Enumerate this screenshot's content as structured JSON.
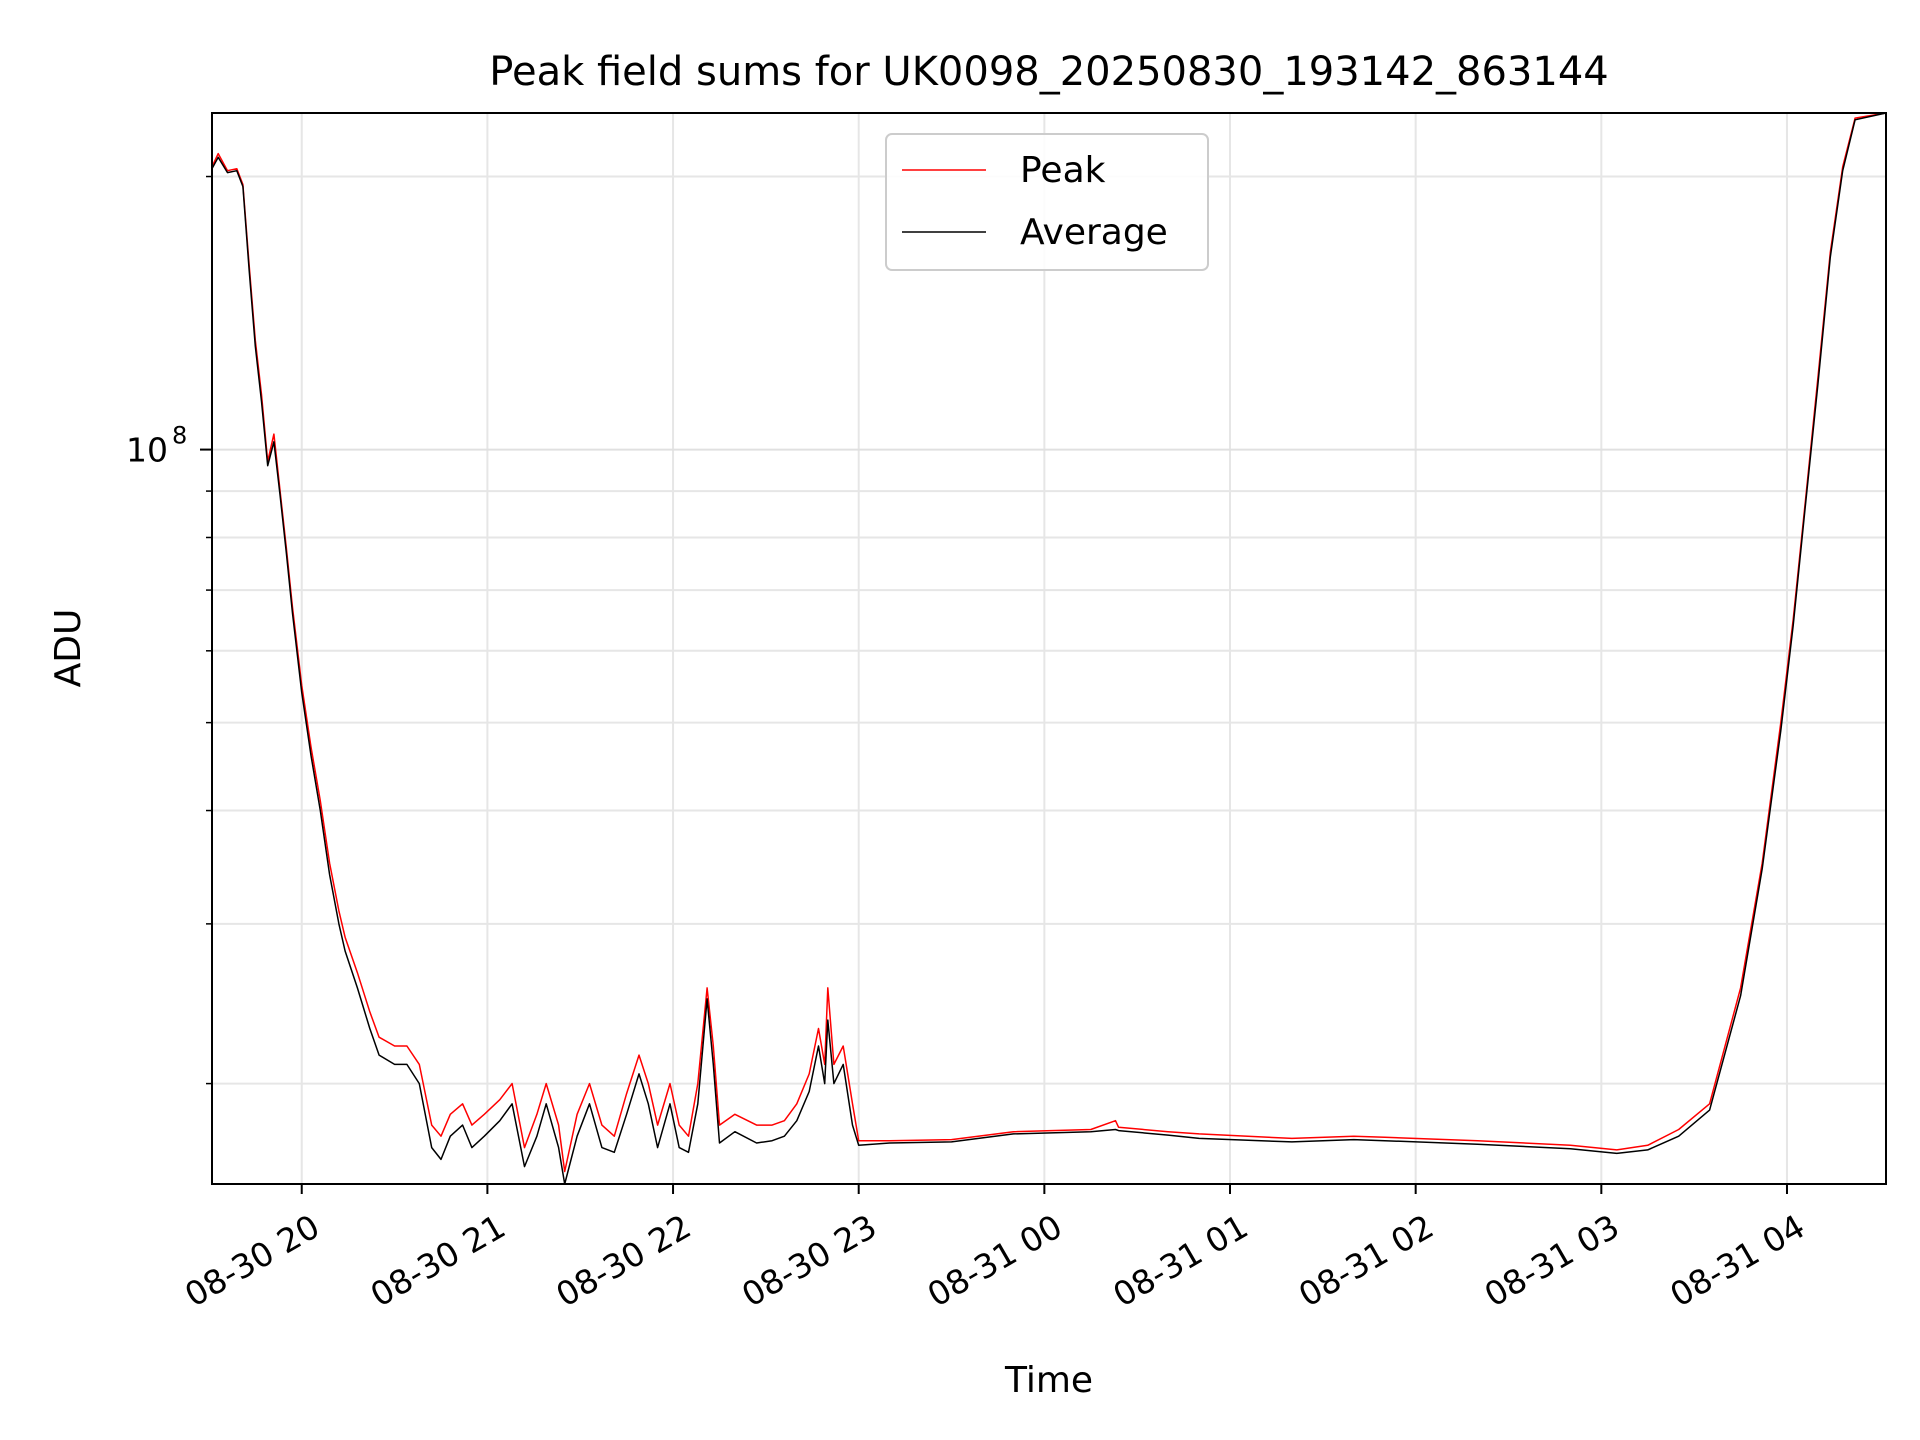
{
  "chart_data": {
    "type": "line",
    "title": "Peak field sums for UK0098_20250830_193142_863144",
    "xlabel": "Time",
    "ylabel": "ADU",
    "yscale": "log",
    "grid": true,
    "legend_placement": "top-center",
    "xlim": [
      "2025-08-30 19:31",
      "2025-08-31 04:32"
    ],
    "ylim": [
      15500000,
      235000000
    ],
    "x_ticks": [
      {
        "t": "2025-08-30 20:00",
        "label": "08-30 20"
      },
      {
        "t": "2025-08-30 21:00",
        "label": "08-30 21"
      },
      {
        "t": "2025-08-30 22:00",
        "label": "08-30 22"
      },
      {
        "t": "2025-08-30 23:00",
        "label": "08-30 23"
      },
      {
        "t": "2025-08-31 00:00",
        "label": "08-31 00"
      },
      {
        "t": "2025-08-31 01:00",
        "label": "08-31 01"
      },
      {
        "t": "2025-08-31 02:00",
        "label": "08-31 02"
      },
      {
        "t": "2025-08-31 03:00",
        "label": "08-31 03"
      },
      {
        "t": "2025-08-31 04:00",
        "label": "08-31 04"
      }
    ],
    "y_major_ticks": [
      {
        "value": 100000000,
        "label": "10",
        "exponent": "8"
      }
    ],
    "y_minor_ticks": [
      20000000,
      30000000,
      40000000,
      50000000,
      60000000,
      70000000,
      80000000,
      90000000,
      200000000
    ],
    "series": [
      {
        "name": "Peak",
        "color": "#ff0000",
        "points": [
          [
            "2025-08-30 19:31",
            205000000
          ],
          [
            "2025-08-30 19:33",
            212000000
          ],
          [
            "2025-08-30 19:36",
            203000000
          ],
          [
            "2025-08-30 19:39",
            204000000
          ],
          [
            "2025-08-30 19:41",
            196000000
          ],
          [
            "2025-08-30 19:43",
            160000000
          ],
          [
            "2025-08-30 19:45",
            132000000
          ],
          [
            "2025-08-30 19:47",
            115000000
          ],
          [
            "2025-08-30 19:49",
            97000000
          ],
          [
            "2025-08-30 19:51",
            104000000
          ],
          [
            "2025-08-30 19:53",
            90000000
          ],
          [
            "2025-08-30 19:55",
            78000000
          ],
          [
            "2025-08-30 19:57",
            67000000
          ],
          [
            "2025-08-30 20:00",
            55000000
          ],
          [
            "2025-08-30 20:03",
            47000000
          ],
          [
            "2025-08-30 20:06",
            41000000
          ],
          [
            "2025-08-30 20:09",
            35000000
          ],
          [
            "2025-08-30 20:12",
            31000000
          ],
          [
            "2025-08-30 20:14",
            29000000
          ],
          [
            "2025-08-30 20:18",
            26500000
          ],
          [
            "2025-08-30 20:22",
            24000000
          ],
          [
            "2025-08-30 20:25",
            22500000
          ],
          [
            "2025-08-30 20:30",
            22000000
          ],
          [
            "2025-08-30 20:34",
            22000000
          ],
          [
            "2025-08-30 20:38",
            21000000
          ],
          [
            "2025-08-30 20:42",
            18000000
          ],
          [
            "2025-08-30 20:45",
            17500000
          ],
          [
            "2025-08-30 20:48",
            18500000
          ],
          [
            "2025-08-30 20:52",
            19000000
          ],
          [
            "2025-08-30 20:55",
            18000000
          ],
          [
            "2025-08-30 20:59",
            18500000
          ],
          [
            "2025-08-30 21:04",
            19200000
          ],
          [
            "2025-08-30 21:08",
            20000000
          ],
          [
            "2025-08-30 21:12",
            17000000
          ],
          [
            "2025-08-30 21:16",
            18500000
          ],
          [
            "2025-08-30 21:19",
            20000000
          ],
          [
            "2025-08-30 21:23",
            18000000
          ],
          [
            "2025-08-30 21:25",
            16000000
          ],
          [
            "2025-08-30 21:29",
            18500000
          ],
          [
            "2025-08-30 21:33",
            20000000
          ],
          [
            "2025-08-30 21:37",
            18000000
          ],
          [
            "2025-08-30 21:41",
            17500000
          ],
          [
            "2025-08-30 21:45",
            19500000
          ],
          [
            "2025-08-30 21:49",
            21500000
          ],
          [
            "2025-08-30 21:52",
            20000000
          ],
          [
            "2025-08-30 21:55",
            18000000
          ],
          [
            "2025-08-30 21:59",
            20000000
          ],
          [
            "2025-08-30 22:02",
            18000000
          ],
          [
            "2025-08-30 22:05",
            17500000
          ],
          [
            "2025-08-30 22:08",
            20000000
          ],
          [
            "2025-08-30 22:11",
            25500000
          ],
          [
            "2025-08-30 22:13",
            22000000
          ],
          [
            "2025-08-30 22:15",
            18000000
          ],
          [
            "2025-08-30 22:20",
            18500000
          ],
          [
            "2025-08-30 22:27",
            18000000
          ],
          [
            "2025-08-30 22:32",
            18000000
          ],
          [
            "2025-08-30 22:36",
            18200000
          ],
          [
            "2025-08-30 22:40",
            19000000
          ],
          [
            "2025-08-30 22:44",
            20500000
          ],
          [
            "2025-08-30 22:47",
            23000000
          ],
          [
            "2025-08-30 22:49",
            21000000
          ],
          [
            "2025-08-30 22:50",
            25500000
          ],
          [
            "2025-08-30 22:52",
            21000000
          ],
          [
            "2025-08-30 22:55",
            22000000
          ],
          [
            "2025-08-30 22:58",
            19000000
          ],
          [
            "2025-08-30 23:00",
            17300000
          ],
          [
            "2025-08-30 23:10",
            17300000
          ],
          [
            "2025-08-30 23:30",
            17350000
          ],
          [
            "2025-08-30 23:50",
            17700000
          ],
          [
            "2025-08-31 00:15",
            17800000
          ],
          [
            "2025-08-31 00:23",
            18200000
          ],
          [
            "2025-08-31 00:24",
            17900000
          ],
          [
            "2025-08-31 00:40",
            17700000
          ],
          [
            "2025-08-31 00:50",
            17600000
          ],
          [
            "2025-08-31 01:20",
            17400000
          ],
          [
            "2025-08-31 01:40",
            17500000
          ],
          [
            "2025-08-31 01:50",
            17450000
          ],
          [
            "2025-08-31 02:20",
            17300000
          ],
          [
            "2025-08-31 02:50",
            17100000
          ],
          [
            "2025-08-31 03:05",
            16900000
          ],
          [
            "2025-08-31 03:15",
            17100000
          ],
          [
            "2025-08-31 03:25",
            17800000
          ],
          [
            "2025-08-31 03:35",
            19000000
          ],
          [
            "2025-08-31 03:45",
            25500000
          ],
          [
            "2025-08-31 03:52",
            35000000
          ],
          [
            "2025-08-31 03:58",
            50000000
          ],
          [
            "2025-08-31 04:02",
            65000000
          ],
          [
            "2025-08-31 04:06",
            88000000
          ],
          [
            "2025-08-31 04:10",
            120000000
          ],
          [
            "2025-08-31 04:14",
            165000000
          ],
          [
            "2025-08-31 04:18",
            205000000
          ],
          [
            "2025-08-31 04:22",
            232000000
          ],
          [
            "2025-08-31 04:32",
            235000000
          ]
        ]
      },
      {
        "name": "Average",
        "color": "#000000",
        "points": [
          [
            "2025-08-30 19:31",
            204000000
          ],
          [
            "2025-08-30 19:33",
            210000000
          ],
          [
            "2025-08-30 19:36",
            202000000
          ],
          [
            "2025-08-30 19:39",
            203000000
          ],
          [
            "2025-08-30 19:41",
            195000000
          ],
          [
            "2025-08-30 19:43",
            158000000
          ],
          [
            "2025-08-30 19:45",
            130000000
          ],
          [
            "2025-08-30 19:47",
            113000000
          ],
          [
            "2025-08-30 19:49",
            96000000
          ],
          [
            "2025-08-30 19:51",
            102000000
          ],
          [
            "2025-08-30 19:53",
            89000000
          ],
          [
            "2025-08-30 19:55",
            77000000
          ],
          [
            "2025-08-30 19:57",
            66000000
          ],
          [
            "2025-08-30 20:00",
            54000000
          ],
          [
            "2025-08-30 20:03",
            46000000
          ],
          [
            "2025-08-30 20:06",
            40000000
          ],
          [
            "2025-08-30 20:09",
            34000000
          ],
          [
            "2025-08-30 20:12",
            30000000
          ],
          [
            "2025-08-30 20:14",
            28000000
          ],
          [
            "2025-08-30 20:18",
            25500000
          ],
          [
            "2025-08-30 20:22",
            23000000
          ],
          [
            "2025-08-30 20:25",
            21500000
          ],
          [
            "2025-08-30 20:30",
            21000000
          ],
          [
            "2025-08-30 20:34",
            21000000
          ],
          [
            "2025-08-30 20:38",
            20000000
          ],
          [
            "2025-08-30 20:42",
            17000000
          ],
          [
            "2025-08-30 20:45",
            16500000
          ],
          [
            "2025-08-30 20:48",
            17500000
          ],
          [
            "2025-08-30 20:52",
            18000000
          ],
          [
            "2025-08-30 20:55",
            17000000
          ],
          [
            "2025-08-30 20:59",
            17500000
          ],
          [
            "2025-08-30 21:04",
            18200000
          ],
          [
            "2025-08-30 21:08",
            19000000
          ],
          [
            "2025-08-30 21:12",
            16200000
          ],
          [
            "2025-08-30 21:16",
            17500000
          ],
          [
            "2025-08-30 21:19",
            19000000
          ],
          [
            "2025-08-30 21:23",
            17000000
          ],
          [
            "2025-08-30 21:25",
            15500000
          ],
          [
            "2025-08-30 21:29",
            17500000
          ],
          [
            "2025-08-30 21:33",
            19000000
          ],
          [
            "2025-08-30 21:37",
            17000000
          ],
          [
            "2025-08-30 21:41",
            16800000
          ],
          [
            "2025-08-30 21:45",
            18500000
          ],
          [
            "2025-08-30 21:49",
            20500000
          ],
          [
            "2025-08-30 21:52",
            19000000
          ],
          [
            "2025-08-30 21:55",
            17000000
          ],
          [
            "2025-08-30 21:59",
            19000000
          ],
          [
            "2025-08-30 22:02",
            17000000
          ],
          [
            "2025-08-30 22:05",
            16800000
          ],
          [
            "2025-08-30 22:08",
            19000000
          ],
          [
            "2025-08-30 22:11",
            24800000
          ],
          [
            "2025-08-30 22:13",
            21000000
          ],
          [
            "2025-08-30 22:15",
            17200000
          ],
          [
            "2025-08-30 22:20",
            17700000
          ],
          [
            "2025-08-30 22:27",
            17200000
          ],
          [
            "2025-08-30 22:32",
            17300000
          ],
          [
            "2025-08-30 22:36",
            17500000
          ],
          [
            "2025-08-30 22:40",
            18200000
          ],
          [
            "2025-08-30 22:44",
            19600000
          ],
          [
            "2025-08-30 22:47",
            22000000
          ],
          [
            "2025-08-30 22:49",
            20000000
          ],
          [
            "2025-08-30 22:50",
            23500000
          ],
          [
            "2025-08-30 22:52",
            20000000
          ],
          [
            "2025-08-30 22:55",
            21000000
          ],
          [
            "2025-08-30 22:58",
            18000000
          ],
          [
            "2025-08-30 23:00",
            17100000
          ],
          [
            "2025-08-30 23:10",
            17200000
          ],
          [
            "2025-08-30 23:30",
            17250000
          ],
          [
            "2025-08-30 23:50",
            17600000
          ],
          [
            "2025-08-31 00:15",
            17700000
          ],
          [
            "2025-08-31 00:23",
            17800000
          ],
          [
            "2025-08-31 00:24",
            17750000
          ],
          [
            "2025-08-31 00:40",
            17550000
          ],
          [
            "2025-08-31 00:50",
            17400000
          ],
          [
            "2025-08-31 01:20",
            17250000
          ],
          [
            "2025-08-31 01:40",
            17350000
          ],
          [
            "2025-08-31 01:50",
            17300000
          ],
          [
            "2025-08-31 02:20",
            17150000
          ],
          [
            "2025-08-31 02:50",
            16950000
          ],
          [
            "2025-08-31 03:05",
            16750000
          ],
          [
            "2025-08-31 03:15",
            16900000
          ],
          [
            "2025-08-31 03:25",
            17500000
          ],
          [
            "2025-08-31 03:35",
            18700000
          ],
          [
            "2025-08-31 03:45",
            25000000
          ],
          [
            "2025-08-31 03:52",
            34500000
          ],
          [
            "2025-08-31 03:58",
            49000000
          ],
          [
            "2025-08-31 04:02",
            64000000
          ],
          [
            "2025-08-31 04:06",
            87000000
          ],
          [
            "2025-08-31 04:10",
            118000000
          ],
          [
            "2025-08-31 04:14",
            163000000
          ],
          [
            "2025-08-31 04:18",
            203000000
          ],
          [
            "2025-08-31 04:22",
            231000000
          ],
          [
            "2025-08-31 04:32",
            235000000
          ]
        ]
      }
    ]
  }
}
